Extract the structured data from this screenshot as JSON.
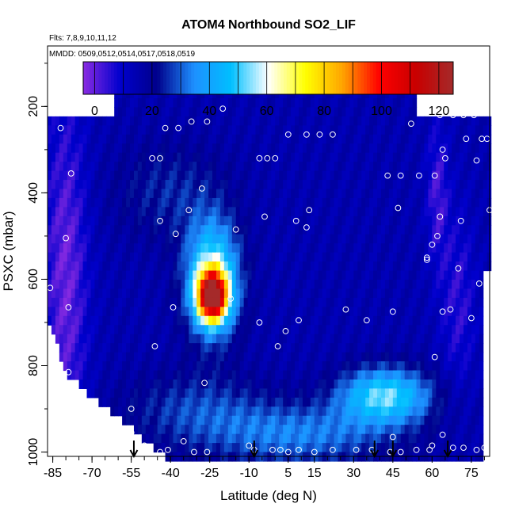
{
  "chart_data": {
    "type": "heatmap",
    "title": "ATOM4 Northbound SO2_LIF",
    "notes": [
      "Flts: 7,8,9,10,11,12",
      "MMDD: 0509,0512,0514,0517,0518,0519"
    ],
    "xlabel": "Latitude (deg N)",
    "ylabel": "PSXC (mbar)",
    "xlim": [
      -87,
      82
    ],
    "ylim": [
      1010,
      60
    ],
    "x_ticks": [
      -85,
      -70,
      -55,
      -40,
      -25,
      -10,
      5,
      15,
      30,
      45,
      60,
      75
    ],
    "y_ticks": [
      200,
      400,
      600,
      800,
      1000
    ],
    "colorbar": {
      "ticks": [
        0,
        20,
        40,
        60,
        80,
        100,
        120
      ],
      "range": [
        -4,
        125
      ],
      "colors": [
        "#8a2be2",
        "#0000cd",
        "#00008b",
        "#1e90ff",
        "#00bfff",
        "#ffffff",
        "#ffff00",
        "#ffa500",
        "#ff0000",
        "#c80000",
        "#a52a2a"
      ]
    },
    "field": {
      "background_value": 15,
      "enhancements": [
        {
          "lat": -24,
          "p": 640,
          "amplitude": 90,
          "sigma_lat": 4,
          "sigma_p": 40
        },
        {
          "lat": -24,
          "p": 600,
          "amplitude": 45,
          "sigma_lat": 7,
          "sigma_p": 90
        },
        {
          "lat": 42,
          "p": 870,
          "amplitude": 38,
          "sigma_lat": 12,
          "sigma_p": 45
        },
        {
          "lat": 10,
          "p": 960,
          "amplitude": 18,
          "sigma_lat": 25,
          "sigma_p": 50
        },
        {
          "lat": -30,
          "p": 900,
          "amplitude": 12,
          "sigma_lat": 20,
          "sigma_p": 60
        },
        {
          "lat": -40,
          "p": 400,
          "amplitude": 10,
          "sigma_lat": 15,
          "sigma_p": 80
        }
      ],
      "low_regions": [
        {
          "lat": -80,
          "p": 600,
          "amplitude": -16,
          "sigma_lat": 6,
          "sigma_p": 300
        },
        {
          "lat": 62,
          "p": 400,
          "amplitude": -12,
          "sigma_lat": 3,
          "sigma_p": 120
        },
        {
          "lat": 70,
          "p": 650,
          "amplitude": -10,
          "sigma_lat": 5,
          "sigma_p": 150
        }
      ]
    },
    "observations": [
      {
        "lat": -86,
        "p": 215
      },
      {
        "lat": -82,
        "p": 250
      },
      {
        "lat": -78,
        "p": 355
      },
      {
        "lat": -80,
        "p": 505
      },
      {
        "lat": -86,
        "p": 620
      },
      {
        "lat": -79,
        "p": 665
      },
      {
        "lat": -79,
        "p": 815
      },
      {
        "lat": -55,
        "p": 900
      },
      {
        "lat": -55,
        "p": 955
      },
      {
        "lat": -68,
        "p": 205
      },
      {
        "lat": -42,
        "p": 250
      },
      {
        "lat": -37,
        "p": 250
      },
      {
        "lat": -32,
        "p": 235
      },
      {
        "lat": -26,
        "p": 235
      },
      {
        "lat": -20,
        "p": 205
      },
      {
        "lat": -47,
        "p": 320
      },
      {
        "lat": -44,
        "p": 320
      },
      {
        "lat": -28,
        "p": 390
      },
      {
        "lat": -33,
        "p": 440
      },
      {
        "lat": -44,
        "p": 465
      },
      {
        "lat": -38,
        "p": 495
      },
      {
        "lat": -15,
        "p": 485
      },
      {
        "lat": -39,
        "p": 665
      },
      {
        "lat": -17,
        "p": 645
      },
      {
        "lat": -46,
        "p": 755
      },
      {
        "lat": -27,
        "p": 840
      },
      {
        "lat": -6,
        "p": 320
      },
      {
        "lat": -3,
        "p": 320
      },
      {
        "lat": 5,
        "p": 265
      },
      {
        "lat": 0,
        "p": 320
      },
      {
        "lat": -4,
        "p": 455
      },
      {
        "lat": 8,
        "p": 465
      },
      {
        "lat": 13,
        "p": 440
      },
      {
        "lat": 12,
        "p": 480
      },
      {
        "lat": -6,
        "p": 700
      },
      {
        "lat": 1,
        "p": 755
      },
      {
        "lat": 4,
        "p": 720
      },
      {
        "lat": 9,
        "p": 695
      },
      {
        "lat": 12,
        "p": 265
      },
      {
        "lat": 17,
        "p": 265
      },
      {
        "lat": 22,
        "p": 265
      },
      {
        "lat": 27,
        "p": 670
      },
      {
        "lat": 35,
        "p": 695
      },
      {
        "lat": 43,
        "p": 360
      },
      {
        "lat": 48,
        "p": 360
      },
      {
        "lat": 52,
        "p": 240
      },
      {
        "lat": 57,
        "p": 205
      },
      {
        "lat": 55,
        "p": 360
      },
      {
        "lat": 61,
        "p": 360
      },
      {
        "lat": 45,
        "p": 675
      },
      {
        "lat": 47,
        "p": 435
      },
      {
        "lat": 58,
        "p": 550
      },
      {
        "lat": 60,
        "p": 520
      },
      {
        "lat": 62,
        "p": 500
      },
      {
        "lat": 63,
        "p": 455
      },
      {
        "lat": 64,
        "p": 300
      },
      {
        "lat": 58,
        "p": 555
      },
      {
        "lat": 63,
        "p": 220
      },
      {
        "lat": 68,
        "p": 220
      },
      {
        "lat": 72,
        "p": 220
      },
      {
        "lat": 76,
        "p": 220
      },
      {
        "lat": 73,
        "p": 275
      },
      {
        "lat": 79,
        "p": 275
      },
      {
        "lat": 81,
        "p": 275
      },
      {
        "lat": 77,
        "p": 325
      },
      {
        "lat": 65,
        "p": 320
      },
      {
        "lat": 71,
        "p": 465
      },
      {
        "lat": 82,
        "p": 440
      },
      {
        "lat": 70,
        "p": 575
      },
      {
        "lat": 64,
        "p": 675
      },
      {
        "lat": 67,
        "p": 670
      },
      {
        "lat": 75,
        "p": 690
      },
      {
        "lat": 78,
        "p": 610
      },
      {
        "lat": 61,
        "p": 780
      },
      {
        "lat": 60,
        "p": 985
      },
      {
        "lat": 64,
        "p": 960
      },
      {
        "lat": 68,
        "p": 990
      },
      {
        "lat": 72,
        "p": 990
      },
      {
        "lat": 77,
        "p": 995
      },
      {
        "lat": 80,
        "p": 990
      },
      {
        "lat": -53,
        "p": 995
      },
      {
        "lat": -50,
        "p": 985
      },
      {
        "lat": -44,
        "p": 1000
      },
      {
        "lat": -41,
        "p": 995
      },
      {
        "lat": -35,
        "p": 975
      },
      {
        "lat": -31,
        "p": 1000
      },
      {
        "lat": -26,
        "p": 1000
      },
      {
        "lat": -10,
        "p": 985
      },
      {
        "lat": -8,
        "p": 995
      },
      {
        "lat": -1,
        "p": 995
      },
      {
        "lat": 2,
        "p": 995
      },
      {
        "lat": 5,
        "p": 1000
      },
      {
        "lat": 9,
        "p": 995
      },
      {
        "lat": 15,
        "p": 1000
      },
      {
        "lat": 22,
        "p": 995
      },
      {
        "lat": 31,
        "p": 995
      },
      {
        "lat": 37,
        "p": 995
      },
      {
        "lat": 44,
        "p": 1000
      },
      {
        "lat": 48,
        "p": 1000
      },
      {
        "lat": 54,
        "p": 995
      },
      {
        "lat": 59,
        "p": 995
      },
      {
        "lat": 45,
        "p": 965
      }
    ],
    "profile_markers": [
      -54,
      -8,
      38,
      45,
      66
    ]
  }
}
